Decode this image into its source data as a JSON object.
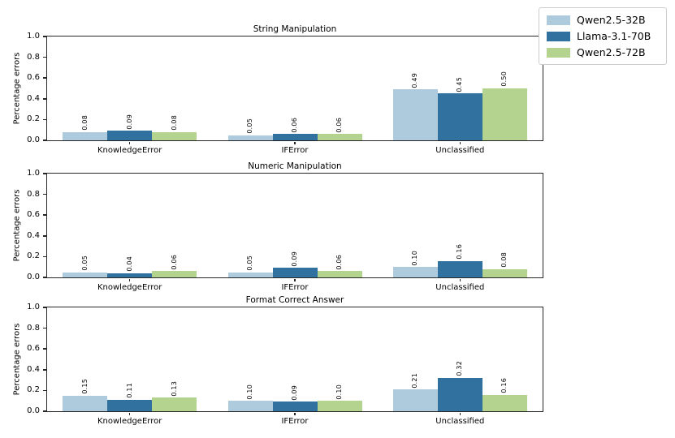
{
  "figure": {
    "ylabel": "Percentage errors",
    "y_ticks": [
      "0.0",
      "0.2",
      "0.4",
      "0.6",
      "0.8",
      "1.0"
    ],
    "x_categories": [
      "KnowledgeError",
      "IFError",
      "Unclassified"
    ],
    "legend": {
      "entries": [
        {
          "label": "Qwen2.5-32B",
          "color": "#aecbdd"
        },
        {
          "label": "Llama-3.1-70B",
          "color": "#31719f"
        },
        {
          "label": "Qwen2.5-72B",
          "color": "#b3d38e"
        }
      ],
      "position": "upper-right"
    },
    "colors": {
      "spine": "#262626",
      "background": "#ffffff",
      "series": [
        "#aecbdd",
        "#31719f",
        "#b3d38e"
      ]
    }
  },
  "chart_data": [
    {
      "type": "bar",
      "title": "String Manipulation",
      "xlabel": "",
      "ylabel": "Percentage errors",
      "ylim": [
        0.0,
        1.0
      ],
      "grid": false,
      "bar_value_labels": true,
      "categories": [
        "KnowledgeError",
        "IFError",
        "Unclassified"
      ],
      "series": [
        {
          "name": "Qwen2.5-32B",
          "values": [
            0.08,
            0.05,
            0.49
          ]
        },
        {
          "name": "Llama-3.1-70B",
          "values": [
            0.09,
            0.06,
            0.45
          ]
        },
        {
          "name": "Qwen2.5-72B",
          "values": [
            0.08,
            0.06,
            0.5
          ]
        }
      ]
    },
    {
      "type": "bar",
      "title": "Numeric Manipulation",
      "xlabel": "",
      "ylabel": "Percentage errors",
      "ylim": [
        0.0,
        1.0
      ],
      "grid": false,
      "bar_value_labels": true,
      "categories": [
        "KnowledgeError",
        "IFError",
        "Unclassified"
      ],
      "series": [
        {
          "name": "Qwen2.5-32B",
          "values": [
            0.05,
            0.05,
            0.1
          ]
        },
        {
          "name": "Llama-3.1-70B",
          "values": [
            0.04,
            0.09,
            0.16
          ]
        },
        {
          "name": "Qwen2.5-72B",
          "values": [
            0.06,
            0.06,
            0.08
          ]
        }
      ]
    },
    {
      "type": "bar",
      "title": "Format Correct Answer",
      "xlabel": "",
      "ylabel": "Percentage errors",
      "ylim": [
        0.0,
        1.0
      ],
      "grid": false,
      "bar_value_labels": true,
      "categories": [
        "KnowledgeError",
        "IFError",
        "Unclassified"
      ],
      "series": [
        {
          "name": "Qwen2.5-32B",
          "values": [
            0.15,
            0.1,
            0.21
          ]
        },
        {
          "name": "Llama-3.1-70B",
          "values": [
            0.11,
            0.09,
            0.32
          ]
        },
        {
          "name": "Qwen2.5-72B",
          "values": [
            0.13,
            0.1,
            0.16
          ]
        }
      ]
    }
  ]
}
